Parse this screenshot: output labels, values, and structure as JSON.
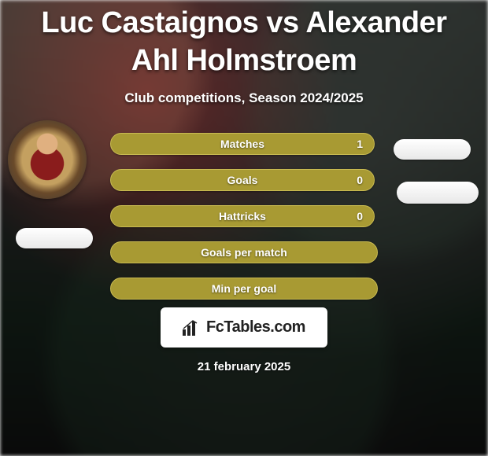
{
  "title": "Luc Castaignos vs Alexander Ahl Holmstroem",
  "subtitle": "Club competitions, Season 2024/2025",
  "date": "21 february 2025",
  "brand": {
    "name": "FcTables.com"
  },
  "colors": {
    "bar_fill": "#a89a33",
    "bar_border": "#c9bb52",
    "pill_bg": "#f3f3f3",
    "text": "#ffffff"
  },
  "stats": [
    {
      "label": "Matches",
      "value": "1"
    },
    {
      "label": "Goals",
      "value": "0"
    },
    {
      "label": "Hattricks",
      "value": "0"
    },
    {
      "label": "Goals per match",
      "value": ""
    },
    {
      "label": "Min per goal",
      "value": ""
    }
  ]
}
